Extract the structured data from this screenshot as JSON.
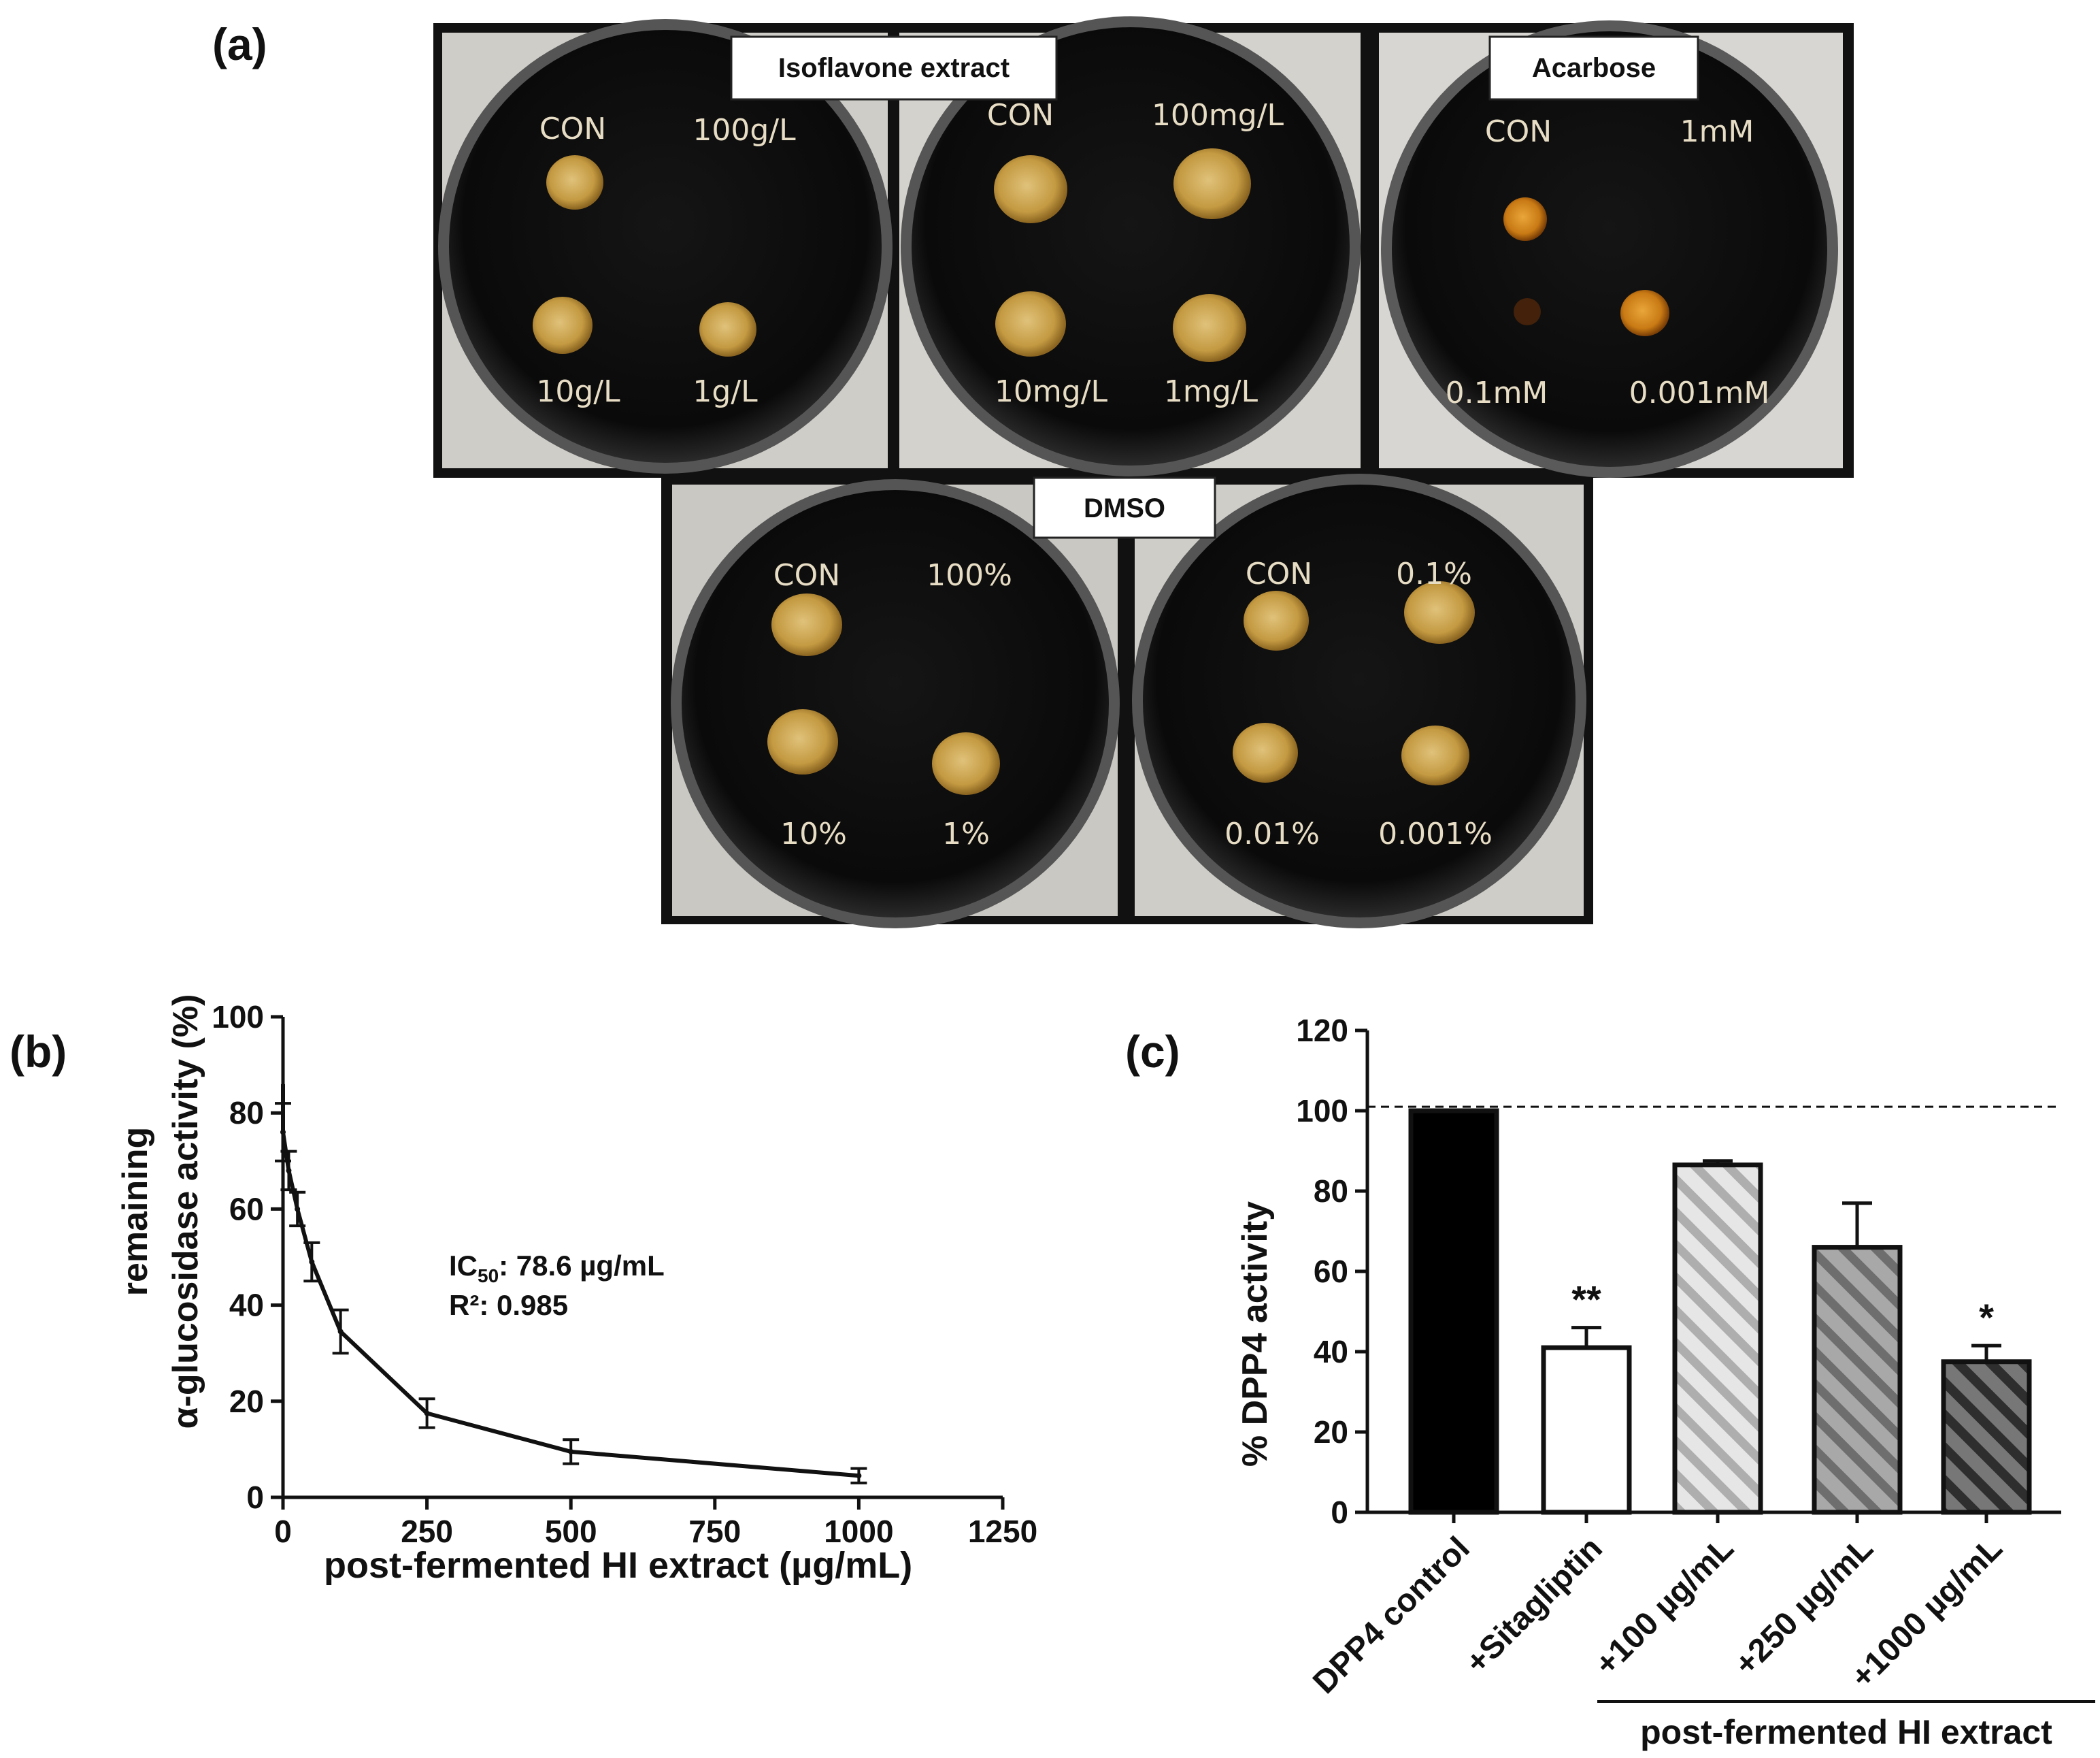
{
  "panel_a": {
    "label": "(a)",
    "groups": [
      {
        "name": "isoflavone",
        "caption": "Isoflavone extract"
      },
      {
        "name": "acarbose",
        "caption": "Acarbose"
      },
      {
        "name": "dmso",
        "caption": "DMSO"
      }
    ],
    "plates": [
      {
        "labels": [
          "CON",
          "100g/L",
          "10g/L",
          "1g/L"
        ],
        "spots": [
          1,
          0,
          1,
          1
        ],
        "spot_color": "#c9a24a"
      },
      {
        "labels": [
          "CON",
          "100mg/L",
          "10mg/L",
          "1mg/L"
        ],
        "spots": [
          1,
          1,
          1,
          1
        ],
        "spot_color": "#c9a24a"
      },
      {
        "labels": [
          "CON",
          "1mM",
          "0.1mM",
          "0.001mM"
        ],
        "spots": [
          0.7,
          0,
          0.4,
          0.75
        ],
        "spot_color": "#d48a1a"
      },
      {
        "labels": [
          "CON",
          "100%",
          "10%",
          "1%"
        ],
        "spots": [
          1,
          0,
          1,
          1
        ],
        "spot_color": "#c9a24a"
      },
      {
        "labels": [
          "CON",
          "0.1%",
          "0.01%",
          "0.001%"
        ],
        "spots": [
          1,
          1,
          1,
          1
        ],
        "spot_color": "#c9a24a"
      }
    ]
  },
  "chart_data": [
    {
      "panel": "(b)",
      "type": "line",
      "x": [
        0,
        10,
        25,
        50,
        100,
        250,
        500,
        1000
      ],
      "y": [
        76,
        68,
        60,
        49,
        34.5,
        17.5,
        9.5,
        4.5
      ],
      "err": [
        6,
        4,
        3.5,
        4,
        4.5,
        3,
        2.5,
        1.5
      ],
      "xlim": [
        0,
        1250
      ],
      "ylim": [
        0,
        100
      ],
      "xticks": [
        "0",
        "250",
        "500",
        "750",
        "1000",
        "1250"
      ],
      "yticks": [
        "0",
        "20",
        "40",
        "60",
        "80",
        "100"
      ],
      "xlabel": "post-fermented  HI extract (µg/mL)",
      "ylabel_line1": "remaining",
      "ylabel_line2": "α-glucosidase activity (%)",
      "annotation_ic50": "IC",
      "annotation_ic50_sub": "50",
      "annotation_ic50_val": ": 78.6 µg/mL",
      "annotation_r2": "R²: 0.985"
    },
    {
      "panel": "(c)",
      "type": "bar",
      "categories": [
        "DPP4 control",
        "+Sitagliptin",
        "+100 µg/mL",
        "+250 µg/mL",
        "+1000 µg/mL"
      ],
      "values": [
        100,
        41,
        86.5,
        66,
        37.5
      ],
      "err": [
        0,
        5,
        1,
        11,
        4
      ],
      "significance": [
        "",
        "**",
        "",
        "",
        "*"
      ],
      "fills": [
        "solid-black",
        "white",
        "hatch-light",
        "hatch-mid",
        "hatch-dark"
      ],
      "ylim": [
        0,
        120
      ],
      "yticks": [
        "0",
        "20",
        "40",
        "60",
        "80",
        "100",
        "120"
      ],
      "ylabel": "% DPP4 activity",
      "reference_line": 101,
      "group_label": "post-fermented  HI extract"
    }
  ]
}
